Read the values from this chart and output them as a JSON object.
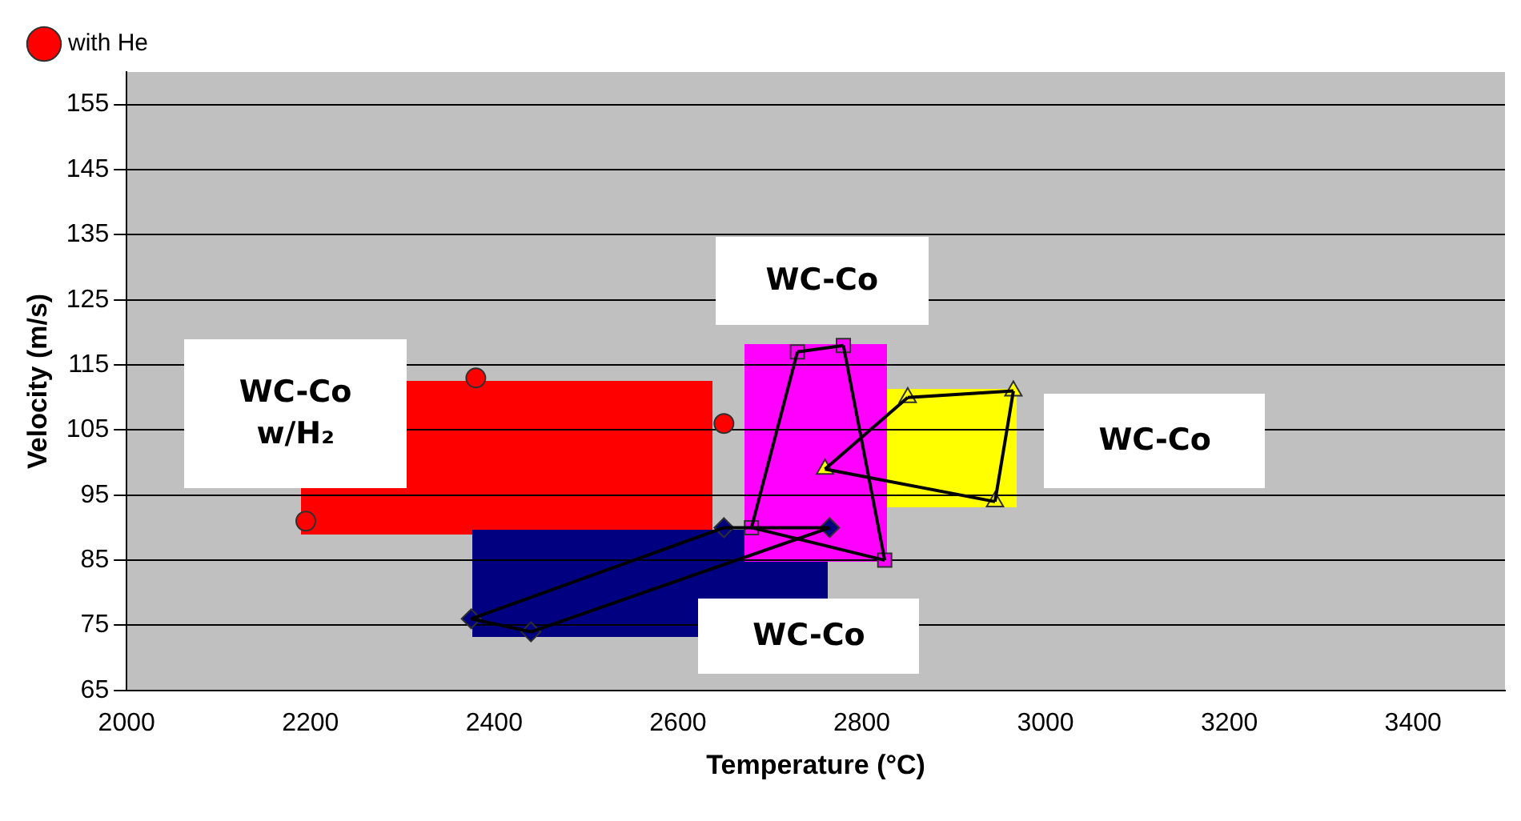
{
  "chart_data": {
    "type": "scatter",
    "xlabel": "Temperature (°C)",
    "ylabel": "Velocity (m/s)",
    "xlim": [
      2000,
      3500
    ],
    "xticks": [
      2000,
      2200,
      2400,
      2600,
      2800,
      3000,
      3200,
      3400
    ],
    "ylim": [
      65,
      160
    ],
    "yticks": [
      65,
      75,
      85,
      95,
      105,
      115,
      125,
      135,
      145,
      155
    ],
    "grid": "y",
    "legend": "top left",
    "series": [
      {
        "type": "line",
        "color": "#000000",
        "marker": "none",
        "x": [
          2375,
          2440
        ],
        "values": [
          76,
          74
        ]
      },
      {
        "type": "line",
        "color": "#000000",
        "marker": "none",
        "x": [
          2440,
          2765
        ],
        "values": [
          74,
          90
        ]
      },
      {
        "type": "line",
        "color": "#000000",
        "marker": "none",
        "x": [
          2650,
          2765
        ],
        "values": [
          90,
          90
        ]
      },
      {
        "type": "line",
        "color": "#000000",
        "marker": "none",
        "x": [
          2375,
          2650
        ],
        "values": [
          76,
          90
        ]
      },
      {
        "type": "line",
        "color": "#000000",
        "marker": "none",
        "x": [
          2680,
          2730
        ],
        "values": [
          90,
          117
        ]
      },
      {
        "type": "line",
        "color": "#000000",
        "marker": "none",
        "x": [
          2730,
          2780
        ],
        "values": [
          117,
          118
        ]
      },
      {
        "type": "line",
        "color": "#000000",
        "marker": "none",
        "x": [
          2780,
          2825
        ],
        "values": [
          118,
          85
        ]
      },
      {
        "type": "line",
        "color": "#000000",
        "marker": "none",
        "x": [
          2680,
          2825
        ],
        "values": [
          90,
          85
        ]
      },
      {
        "type": "line",
        "color": "#000000",
        "marker": "none",
        "x": [
          2760,
          2850
        ],
        "values": [
          99,
          110
        ]
      },
      {
        "type": "line",
        "color": "#000000",
        "marker": "none",
        "x": [
          2850,
          2965
        ],
        "values": [
          110,
          111
        ]
      },
      {
        "type": "line",
        "color": "#000000",
        "marker": "none",
        "x": [
          2945,
          2965
        ],
        "values": [
          94,
          111
        ]
      },
      {
        "type": "line",
        "color": "#000000",
        "marker": "none",
        "x": [
          2760,
          2945
        ],
        "values": [
          99,
          94
        ]
      },
      {
        "color": "#000080",
        "marker": "diamond",
        "x": [
          2375,
          2440,
          2765,
          2650
        ],
        "values": [
          76,
          74,
          90,
          90
        ]
      },
      {
        "color": "#ff00ff",
        "marker": "square",
        "x": [
          2680,
          2730,
          2780,
          2825
        ],
        "values": [
          90,
          117,
          118,
          85
        ]
      },
      {
        "color": "#ffff00",
        "marker": "triangle",
        "x": [
          2760,
          2850,
          2965,
          2945
        ],
        "values": [
          99,
          110,
          111,
          94
        ]
      },
      {
        "name": "with He",
        "color": "#ff0000",
        "marker": "circle",
        "x": [
          2195,
          2380,
          2650
        ],
        "values": [
          91,
          113,
          106
        ]
      }
    ],
    "annotations": [
      "WC-Co w/H₂",
      "WC-Co",
      "WC-Co",
      "WC-Co"
    ]
  }
}
